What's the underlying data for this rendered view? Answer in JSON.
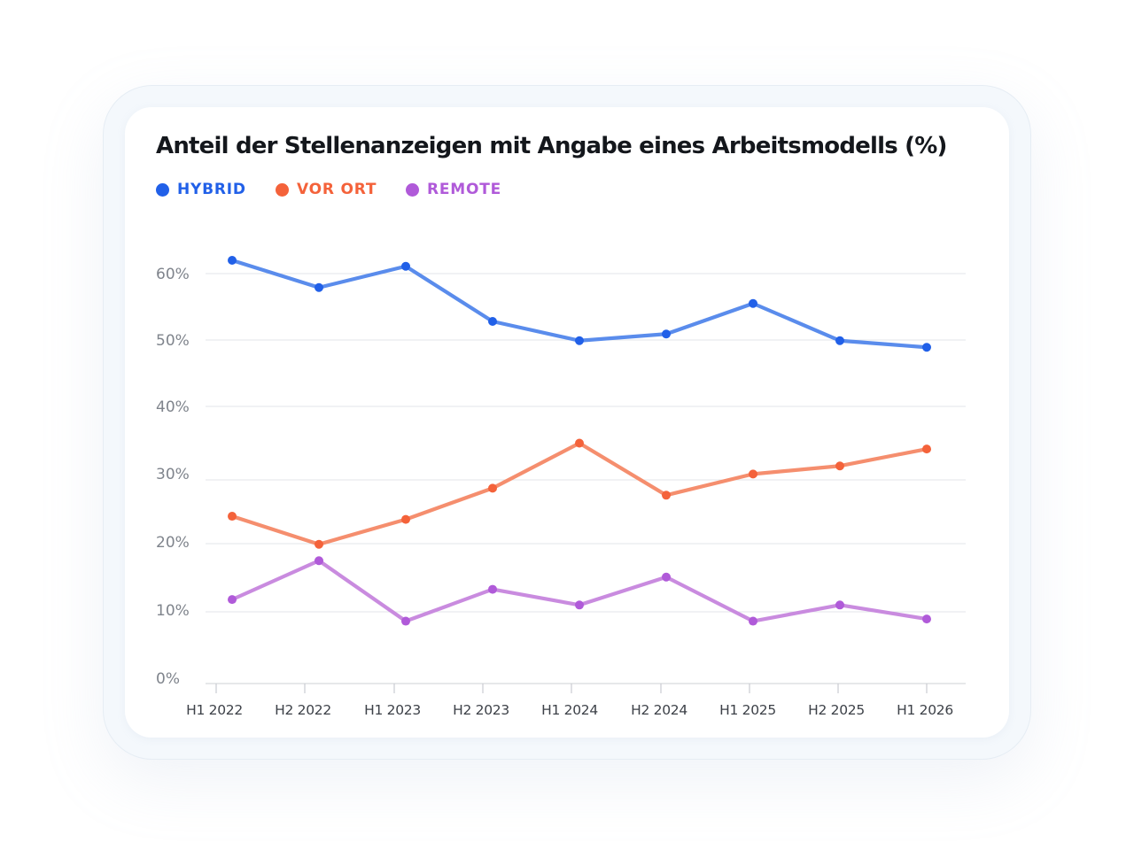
{
  "chart_data": {
    "type": "line",
    "title": "Anteil der Stellenanzeigen mit Angabe eines Arbeitsmodells (%)",
    "categories": [
      "H1 2022",
      "H2 2022",
      "H1 2023",
      "H2 2023",
      "H1 2024",
      "H2 2024",
      "H1 2025",
      "H2 2025",
      "H1 2026"
    ],
    "series": [
      {
        "name": "HYBRID",
        "color": "#2160e8",
        "line_color": "#5a8cec",
        "values": [
          62.0,
          57.9,
          61.1,
          52.8,
          49.9,
          50.9,
          55.5,
          49.9,
          48.9
        ]
      },
      {
        "name": "VOR ORT",
        "color": "#f4623a",
        "line_color": "#f58e6e",
        "values": [
          24.3,
          19.9,
          23.8,
          28.7,
          35.0,
          27.6,
          30.8,
          31.9,
          34.2
        ]
      },
      {
        "name": "REMOTE",
        "color": "#b05ad9",
        "line_color": "#c98bdf",
        "values": [
          11.8,
          17.5,
          8.7,
          13.3,
          11.0,
          15.1,
          8.7,
          11.0,
          9.0
        ]
      }
    ],
    "y_ticks": [
      "0%",
      "10%",
      "20%",
      "30%",
      "40%",
      "50%",
      "60%"
    ],
    "ylim": [
      0,
      60
    ],
    "grid": true,
    "legend_position": "top-left"
  }
}
